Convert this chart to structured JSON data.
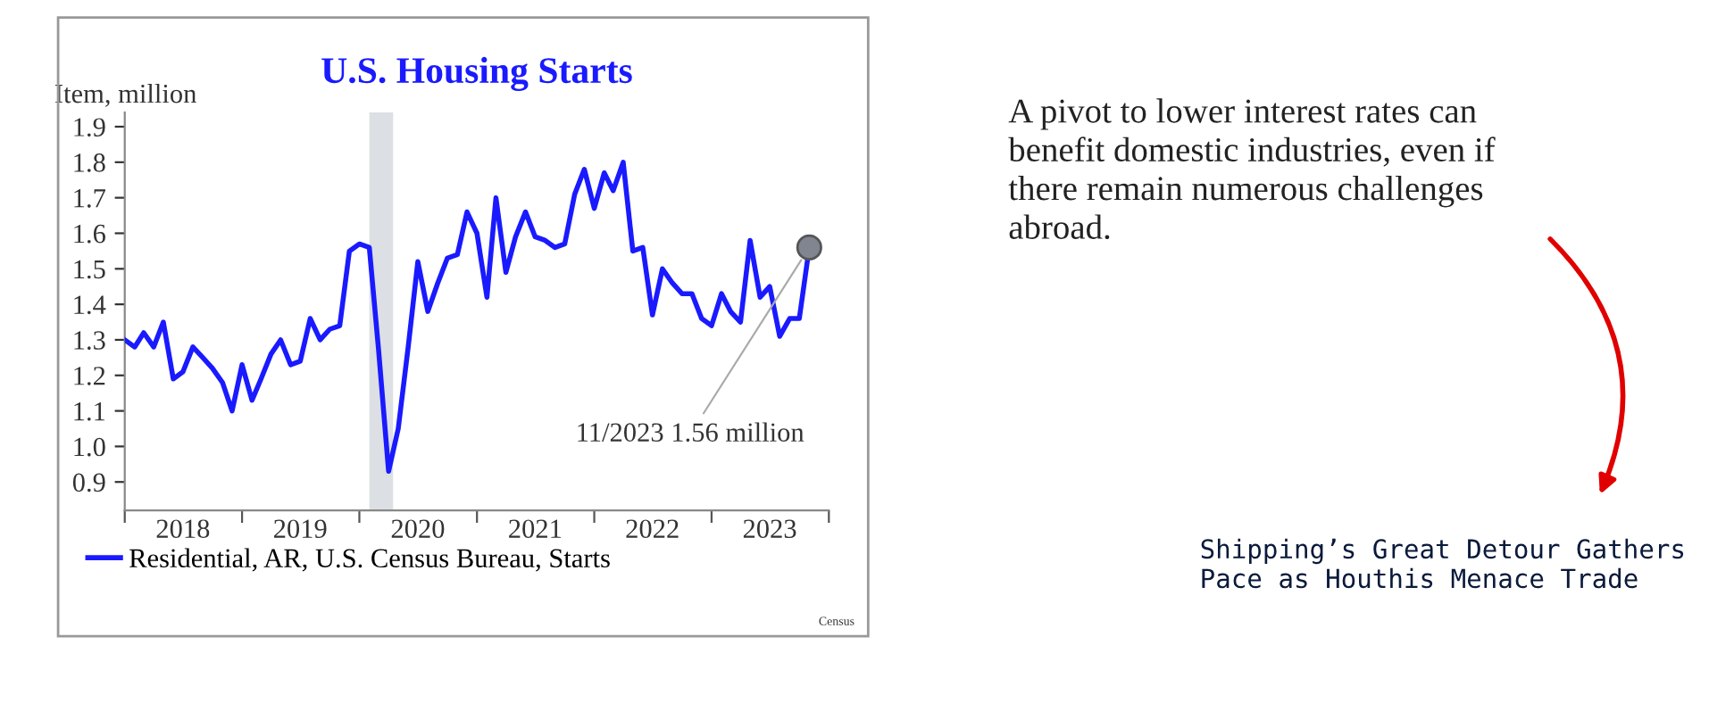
{
  "chart_data": {
    "type": "line",
    "title": "U.S. Housing Starts",
    "ylabel": "Item, million",
    "x": [
      "2018-01",
      "2018-02",
      "2018-03",
      "2018-04",
      "2018-05",
      "2018-06",
      "2018-07",
      "2018-08",
      "2018-09",
      "2018-10",
      "2018-11",
      "2018-12",
      "2019-01",
      "2019-02",
      "2019-03",
      "2019-04",
      "2019-05",
      "2019-06",
      "2019-07",
      "2019-08",
      "2019-09",
      "2019-10",
      "2019-11",
      "2019-12",
      "2020-01",
      "2020-02",
      "2020-03",
      "2020-04",
      "2020-05",
      "2020-06",
      "2020-07",
      "2020-08",
      "2020-09",
      "2020-10",
      "2020-11",
      "2020-12",
      "2021-01",
      "2021-02",
      "2021-03",
      "2021-04",
      "2021-05",
      "2021-06",
      "2021-07",
      "2021-08",
      "2021-09",
      "2021-10",
      "2021-11",
      "2021-12",
      "2022-01",
      "2022-02",
      "2022-03",
      "2022-04",
      "2022-05",
      "2022-06",
      "2022-07",
      "2022-08",
      "2022-09",
      "2022-10",
      "2022-11",
      "2022-12",
      "2023-01",
      "2023-02",
      "2023-03",
      "2023-04",
      "2023-05",
      "2023-06",
      "2023-07",
      "2023-08",
      "2023-09",
      "2023-10",
      "2023-11"
    ],
    "series": [
      {
        "name": "Residential, AR, U.S. Census Bureau, Starts",
        "color": "#1a1aff",
        "values": [
          1.3,
          1.28,
          1.32,
          1.28,
          1.35,
          1.19,
          1.21,
          1.28,
          1.25,
          1.22,
          1.18,
          1.1,
          1.23,
          1.13,
          1.19,
          1.26,
          1.3,
          1.23,
          1.24,
          1.36,
          1.3,
          1.33,
          1.34,
          1.55,
          1.57,
          1.56,
          1.27,
          0.93,
          1.05,
          1.28,
          1.52,
          1.38,
          1.46,
          1.53,
          1.54,
          1.66,
          1.6,
          1.42,
          1.7,
          1.49,
          1.59,
          1.66,
          1.59,
          1.58,
          1.56,
          1.57,
          1.71,
          1.78,
          1.67,
          1.77,
          1.72,
          1.8,
          1.55,
          1.56,
          1.37,
          1.5,
          1.46,
          1.43,
          1.43,
          1.36,
          1.34,
          1.43,
          1.38,
          1.35,
          1.58,
          1.42,
          1.45,
          1.31,
          1.36,
          1.36,
          1.56
        ]
      }
    ],
    "xlim": [
      "2018-01-01",
      "2024-01-01"
    ],
    "xticks": [
      {
        "value": "2018-01-01",
        "label": null
      },
      {
        "value": "2019-01-01",
        "label": null
      },
      {
        "value": "2020-01-01",
        "label": null
      },
      {
        "value": "2021-01-01",
        "label": null
      },
      {
        "value": "2022-01-01",
        "label": null
      },
      {
        "value": "2023-01-01",
        "label": null
      },
      {
        "value": "2024-01-01",
        "label": null
      },
      {
        "value": "2018-07-01",
        "label": "2018"
      },
      {
        "value": "2019-07-01",
        "label": "2019"
      },
      {
        "value": "2020-07-01",
        "label": "2020"
      },
      {
        "value": "2021-07-01",
        "label": "2021"
      },
      {
        "value": "2022-07-01",
        "label": "2022"
      },
      {
        "value": "2023-07-01",
        "label": "2023"
      }
    ],
    "ylim": [
      0.82,
      1.94
    ],
    "yticks": [
      {
        "value": 0.9,
        "label": "0.9"
      },
      {
        "value": 1.0,
        "label": "1.0"
      },
      {
        "value": 1.1,
        "label": "1.1"
      },
      {
        "value": 1.2,
        "label": "1.2"
      },
      {
        "value": 1.3,
        "label": "1.3"
      },
      {
        "value": 1.4,
        "label": "1.4"
      },
      {
        "value": 1.5,
        "label": "1.5"
      },
      {
        "value": 1.6,
        "label": "1.6"
      },
      {
        "value": 1.7,
        "label": "1.7"
      },
      {
        "value": 1.8,
        "label": "1.8"
      },
      {
        "value": 1.9,
        "label": "1.9"
      }
    ],
    "bands": [
      {
        "axis": "x",
        "from": "2020-02-01",
        "to": "2020-04-15",
        "color": "#dcdfe3"
      }
    ],
    "annotations": [
      {
        "text": "11/2023 1.56 million",
        "x": "2023-11",
        "y": 1.56
      },
      "Census",
      "A pivot to lower interest rates can\nbenefit domestic industries, even if\nthere remain numerous challenges\nabroad.",
      "Shipping’s Great Detour Gathers\nPace as Houthis Menace Trade"
    ],
    "legend": "bottom",
    "grid": false,
    "marker": "none",
    "line_style": "solid"
  }
}
